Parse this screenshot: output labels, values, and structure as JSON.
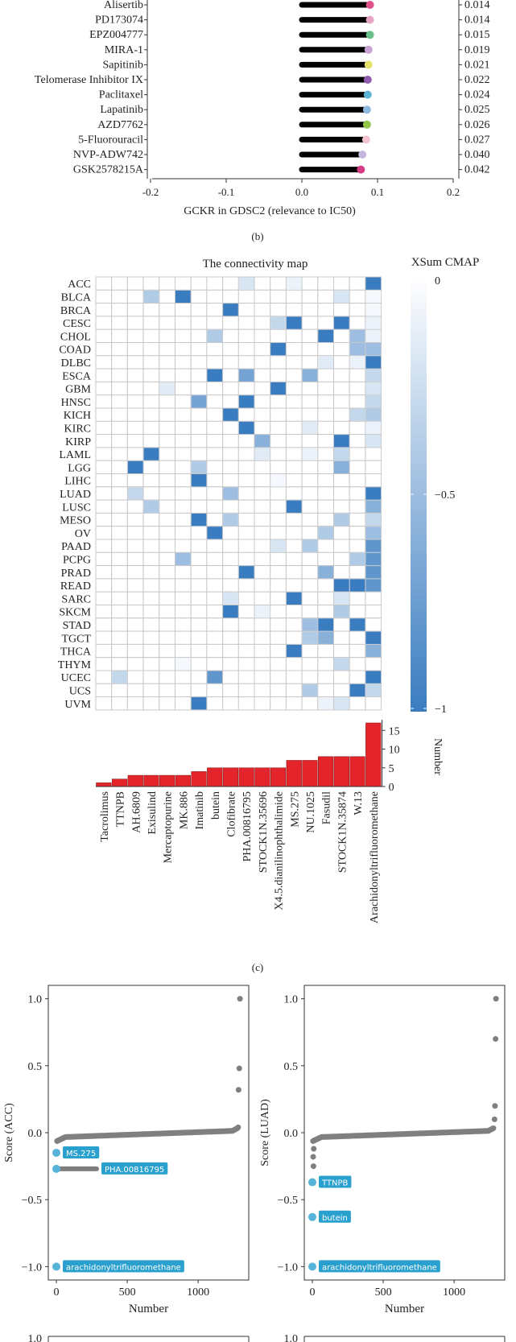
{
  "chart_data": [
    {
      "type": "lollipop",
      "panel": "",
      "xlabel": "GCKR in GDSC2 (relevance to IC50)",
      "xticks": [
        "-0.2",
        "-0.1",
        "0.0",
        "0.1",
        "0.2"
      ],
      "xlim": [
        -0.2,
        0.2
      ],
      "categories": [
        "Alisertib",
        "PD173074",
        "EPZ004777",
        "MIRA-1",
        "Sapitinib",
        "Telomerase Inhibitor IX",
        "Paclitaxel",
        "Lapatinib",
        "AZD7762",
        "5-Fluorouracil",
        "NVP-ADW742",
        "GSK2578215A"
      ],
      "values": [
        0.09,
        0.09,
        0.09,
        0.088,
        0.088,
        0.087,
        0.087,
        0.086,
        0.086,
        0.085,
        0.08,
        0.078
      ],
      "pvalues": [
        "0.014",
        "0.014",
        "0.015",
        "0.019",
        "0.021",
        "0.022",
        "0.024",
        "0.025",
        "0.026",
        "0.027",
        "0.040",
        "0.042"
      ],
      "colors": [
        "#e0518a",
        "#e6a3c2",
        "#6bbf8a",
        "#c9a3d6",
        "#e6e36b",
        "#8e5bb0",
        "#5bb3d6",
        "#8fb7e0",
        "#93c54b",
        "#f2c4cf",
        "#c9b6e0",
        "#d63c83"
      ],
      "caption": "(b)"
    },
    {
      "type": "heatmap",
      "panel": "",
      "title": "The connectivity map",
      "legend_title": "XSum CMAP",
      "legend_ticks": [
        "0",
        "−0.5",
        "−1"
      ],
      "rows": [
        "ACC",
        "BLCA",
        "BRCA",
        "CESC",
        "CHOL",
        "COAD",
        "DLBC",
        "ESCA",
        "GBM",
        "HNSC",
        "KICH",
        "KIRC",
        "KIRP",
        "LAML",
        "LGG",
        "LIHC",
        "LUAD",
        "LUSC",
        "MESO",
        "OV",
        "PAAD",
        "PCPG",
        "PRAD",
        "READ",
        "SARC",
        "SKCM",
        "STAD",
        "TGCT",
        "THCA",
        "THYM",
        "UCEC",
        "UCS",
        "UVM"
      ],
      "columns": [
        "Tacrolimus",
        "TTNPB",
        "AH.6809",
        "Exisulind",
        "Mercaptopurine",
        "MK.886",
        "Imatinib",
        "butein",
        "Clofibrate",
        "PHA.00816795",
        "STOCK1N.35696",
        "X4.5.dianilinophthalimide",
        "MS.275",
        "NU.1025",
        "Fasudil",
        "STOCK1N.35874",
        "W.13",
        "Arachidonyltrifluoromethane"
      ],
      "cells": [
        [
          0,
          9,
          -0.2
        ],
        [
          0,
          12,
          -0.1
        ],
        [
          0,
          17,
          -1
        ],
        [
          1,
          3,
          -0.4
        ],
        [
          1,
          5,
          -1
        ],
        [
          1,
          15,
          -0.2
        ],
        [
          1,
          17,
          -0.05
        ],
        [
          2,
          8,
          -1
        ],
        [
          2,
          17,
          -0.05
        ],
        [
          3,
          11,
          -0.3
        ],
        [
          3,
          12,
          -1
        ],
        [
          3,
          15,
          -1
        ],
        [
          3,
          17,
          -0.1
        ],
        [
          4,
          7,
          -0.4
        ],
        [
          4,
          14,
          -1
        ],
        [
          4,
          16,
          -0.5
        ],
        [
          4,
          17,
          -0.1
        ],
        [
          5,
          11,
          -1
        ],
        [
          5,
          16,
          -0.5
        ],
        [
          5,
          17,
          -0.5
        ],
        [
          6,
          14,
          -0.15
        ],
        [
          6,
          16,
          -0.1
        ],
        [
          6,
          17,
          -1
        ],
        [
          7,
          7,
          -1
        ],
        [
          7,
          9,
          -0.7
        ],
        [
          7,
          13,
          -0.6
        ],
        [
          7,
          17,
          -0.3
        ],
        [
          8,
          4,
          -0.15
        ],
        [
          8,
          11,
          -1
        ],
        [
          8,
          17,
          -0.2
        ],
        [
          9,
          6,
          -0.7
        ],
        [
          9,
          9,
          -1
        ],
        [
          9,
          17,
          -0.3
        ],
        [
          10,
          8,
          -1
        ],
        [
          10,
          16,
          -0.3
        ],
        [
          10,
          17,
          -0.4
        ],
        [
          11,
          9,
          -1
        ],
        [
          11,
          13,
          -0.15
        ],
        [
          11,
          17,
          -0.1
        ],
        [
          12,
          10,
          -0.6
        ],
        [
          12,
          15,
          -1
        ],
        [
          12,
          17,
          -0.2
        ],
        [
          13,
          3,
          -1
        ],
        [
          13,
          10,
          -0.15
        ],
        [
          13,
          13,
          -0.1
        ],
        [
          13,
          15,
          -0.3
        ],
        [
          14,
          2,
          -1
        ],
        [
          14,
          6,
          -0.4
        ],
        [
          14,
          15,
          -0.6
        ],
        [
          15,
          6,
          -1
        ],
        [
          15,
          11,
          -0.05
        ],
        [
          16,
          2,
          -0.3
        ],
        [
          16,
          8,
          -0.5
        ],
        [
          16,
          17,
          -1
        ],
        [
          17,
          3,
          -0.4
        ],
        [
          17,
          12,
          -1
        ],
        [
          17,
          17,
          -0.6
        ],
        [
          18,
          6,
          -1
        ],
        [
          18,
          8,
          -0.4
        ],
        [
          18,
          15,
          -0.4
        ],
        [
          18,
          17,
          -0.3
        ],
        [
          19,
          7,
          -1
        ],
        [
          19,
          14,
          -0.4
        ],
        [
          19,
          17,
          -0.5
        ],
        [
          20,
          11,
          -0.2
        ],
        [
          20,
          13,
          -0.4
        ],
        [
          20,
          17,
          -0.8
        ],
        [
          21,
          5,
          -0.5
        ],
        [
          21,
          16,
          -0.4
        ],
        [
          21,
          17,
          -0.8
        ],
        [
          22,
          9,
          -1
        ],
        [
          22,
          14,
          -0.6
        ],
        [
          22,
          17,
          -0.8
        ],
        [
          23,
          15,
          -1
        ],
        [
          23,
          16,
          -1
        ],
        [
          23,
          17,
          -0.8
        ],
        [
          24,
          8,
          -0.2
        ],
        [
          24,
          12,
          -1
        ],
        [
          24,
          15,
          -0.2
        ],
        [
          25,
          8,
          -1
        ],
        [
          25,
          10,
          -0.1
        ],
        [
          25,
          15,
          -0.4
        ],
        [
          26,
          13,
          -0.5
        ],
        [
          26,
          14,
          -1
        ],
        [
          26,
          16,
          -1
        ],
        [
          27,
          13,
          -0.4
        ],
        [
          27,
          14,
          -0.6
        ],
        [
          27,
          17,
          -1
        ],
        [
          28,
          12,
          -1
        ],
        [
          28,
          17,
          -0.6
        ],
        [
          29,
          5,
          -0.05
        ],
        [
          29,
          15,
          -0.3
        ],
        [
          30,
          1,
          -0.3
        ],
        [
          30,
          7,
          -0.8
        ],
        [
          30,
          17,
          -1
        ],
        [
          31,
          13,
          -0.4
        ],
        [
          31,
          16,
          -1
        ],
        [
          31,
          17,
          -0.3
        ],
        [
          32,
          6,
          -1
        ],
        [
          32,
          14,
          -0.1
        ],
        [
          32,
          15,
          -0.2
        ]
      ],
      "bar_counts": [
        1,
        2,
        3,
        3,
        3,
        3,
        4,
        5,
        5,
        5,
        5,
        5,
        7,
        7,
        8,
        8,
        8,
        17
      ],
      "bar_ylabel": "Number",
      "bar_yticks": [
        "0",
        "5",
        "10",
        "15"
      ],
      "bar_color": "#e3242b",
      "caption": "(c)"
    },
    {
      "type": "scatter",
      "panel": "ACC",
      "ylabel": "Score (ACC)",
      "xlabel": "Number",
      "xlim": [
        0,
        1300
      ],
      "ylim": [
        -1.1,
        1.1
      ],
      "xticks": [
        "0",
        "500",
        "1000"
      ],
      "yticks": [
        "1.0",
        "0.5",
        "0.0",
        "−0.5",
        "−1.0"
      ],
      "extremes": [
        [
          1295,
          1.0
        ],
        [
          1290,
          0.48
        ],
        [
          1285,
          0.32
        ],
        [
          1282,
          0.04
        ]
      ],
      "highlights": [
        {
          "name": "MS.275",
          "x": 0,
          "y": -0.15
        },
        {
          "name": "PHA.00816795",
          "x": 0,
          "y": -0.27
        },
        {
          "name": "arachidonyltrifluoromethane",
          "x": 0,
          "y": -1.0
        }
      ]
    },
    {
      "type": "scatter",
      "panel": "LUAD",
      "ylabel": "Score (LUAD)",
      "xlabel": "Number",
      "xlim": [
        0,
        1300
      ],
      "ylim": [
        -1.1,
        1.1
      ],
      "xticks": [
        "0",
        "500",
        "1000"
      ],
      "yticks": [
        "1.0",
        "0.5",
        "0.0",
        "−0.5",
        "−1.0"
      ],
      "extremes": [
        [
          1295,
          1.0
        ],
        [
          1292,
          0.7
        ],
        [
          1288,
          0.2
        ],
        [
          1285,
          0.1
        ],
        [
          8,
          -0.25
        ],
        [
          6,
          -0.18
        ],
        [
          10,
          -0.12
        ]
      ],
      "highlights": [
        {
          "name": "TTNPB",
          "x": 0,
          "y": -0.37
        },
        {
          "name": "butein",
          "x": 0,
          "y": -0.63
        },
        {
          "name": "arachidonyltrifluoromethane",
          "x": 0,
          "y": -1.0
        }
      ]
    }
  ],
  "partial_panels": {
    "ytick_fragment": "1.0"
  }
}
